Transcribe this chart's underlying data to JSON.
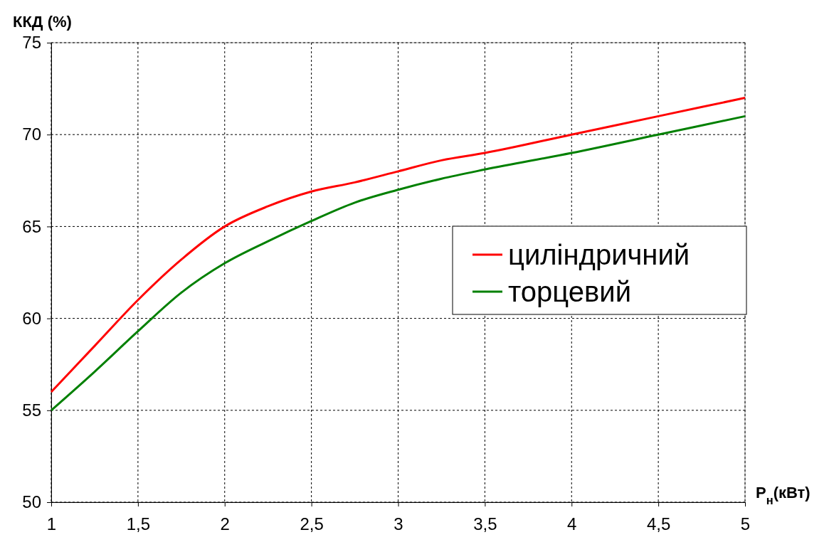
{
  "chart_data": {
    "type": "line",
    "xlabel": "P$_{н}$(кВт)",
    "ylabel": "ККД (%)",
    "x": [
      1,
      1.25,
      1.5,
      1.75,
      2,
      2.25,
      2.5,
      2.75,
      3,
      3.25,
      3.5,
      4,
      4.5,
      5
    ],
    "series": [
      {
        "name": "циліндричний",
        "color": "#ff0000",
        "values": [
          56,
          58.5,
          61,
          63.2,
          65,
          66.1,
          66.9,
          67.4,
          68,
          68.6,
          69,
          70,
          71,
          72
        ]
      },
      {
        "name": "торцевий",
        "color": "#008000",
        "values": [
          55,
          57.1,
          59.3,
          61.4,
          63,
          64.2,
          65.3,
          66.3,
          67,
          67.6,
          68.1,
          69,
          70,
          71
        ]
      }
    ],
    "xlim": [
      1,
      5
    ],
    "xticks": [
      1,
      {
        "value": 1.5,
        "label": "1,5"
      },
      2,
      {
        "value": 2.5,
        "label": "2,5"
      },
      3,
      {
        "value": 3.5,
        "label": "3,5"
      },
      4,
      {
        "value": 4.5,
        "label": "4,5"
      },
      5
    ],
    "ylim": [
      50,
      75
    ],
    "yticks": [
      50,
      55,
      60,
      65,
      70,
      75
    ],
    "grid": true,
    "legend": "right",
    "marker": "none",
    "line_style": "solid"
  }
}
